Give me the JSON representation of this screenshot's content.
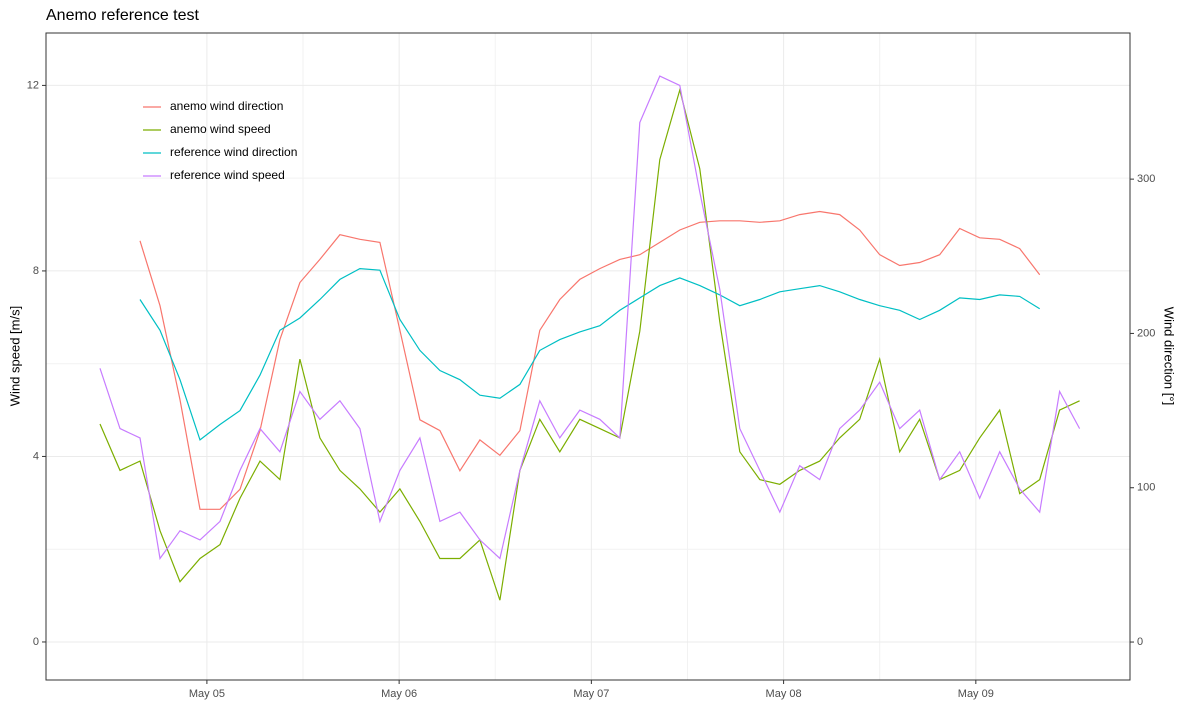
{
  "chart_data": {
    "type": "line",
    "title": "Anemo reference test",
    "y_label": "Wind speed [m/s]",
    "y2_label": "Wind direction [°]",
    "x": [
      4.444,
      4.548,
      4.652,
      4.756,
      4.86,
      4.964,
      5.068,
      5.172,
      5.276,
      5.38,
      5.484,
      5.588,
      5.692,
      5.796,
      5.9,
      6.004,
      6.108,
      6.212,
      6.316,
      6.42,
      6.524,
      6.628,
      6.732,
      6.836,
      6.94,
      7.044,
      7.148,
      7.252,
      7.356,
      7.46,
      7.564,
      7.668,
      7.772,
      7.876,
      7.98,
      8.084,
      8.188,
      8.292,
      8.396,
      8.5,
      8.604,
      8.708,
      8.812,
      8.916,
      9.02,
      9.124,
      9.228,
      9.332,
      9.436,
      9.54
    ],
    "series": [
      {
        "name": "anemo wind direction",
        "color": "#F8766D",
        "axis": "y2",
        "values": [
          null,
          null,
          260,
          218,
          157,
          86,
          86,
          99,
          137,
          196,
          233,
          248,
          264,
          261,
          259,
          202,
          144,
          137,
          111,
          131,
          121,
          137,
          202,
          222,
          235,
          242,
          248,
          251,
          259,
          267,
          272,
          273,
          273,
          272,
          273,
          277,
          279,
          277,
          267,
          251,
          244,
          246,
          251,
          268,
          262,
          261,
          255,
          238,
          null,
          null
        ]
      },
      {
        "name": "anemo wind speed",
        "color": "#7CAE00",
        "values": [
          4.7,
          3.7,
          3.9,
          2.4,
          1.3,
          1.8,
          2.1,
          3.1,
          3.9,
          3.5,
          6.1,
          4.4,
          3.7,
          3.3,
          2.8,
          3.3,
          2.6,
          1.8,
          1.8,
          2.2,
          0.9,
          3.7,
          4.8,
          4.1,
          4.8,
          4.6,
          4.4,
          6.7,
          10.4,
          11.9,
          10.2,
          6.9,
          4.1,
          3.5,
          3.4,
          3.7,
          3.9,
          4.4,
          4.8,
          6.1,
          4.1,
          4.8,
          3.5,
          3.7,
          4.4,
          5.0,
          3.2,
          3.5,
          5.0,
          5.2
        ]
      },
      {
        "name": "reference wind direction",
        "color": "#00BFC4",
        "axis": "y2",
        "values": [
          null,
          null,
          222,
          202,
          170,
          131,
          141,
          150,
          173,
          202,
          210,
          222,
          235,
          242,
          241,
          209,
          189,
          176,
          170,
          160,
          158,
          167,
          189,
          196,
          201,
          205,
          215,
          223,
          231,
          236,
          231,
          225,
          218,
          222,
          227,
          229,
          231,
          227,
          222,
          218,
          215,
          209,
          215,
          223,
          222,
          225,
          224,
          216,
          null,
          null
        ]
      },
      {
        "name": "reference wind speed",
        "color": "#C77CFF",
        "values": [
          5.9,
          4.6,
          4.4,
          1.8,
          2.4,
          2.2,
          2.6,
          3.7,
          4.6,
          4.1,
          5.4,
          4.8,
          5.2,
          4.6,
          2.6,
          3.7,
          4.4,
          2.6,
          2.8,
          2.2,
          1.8,
          3.7,
          5.2,
          4.4,
          5.0,
          4.8,
          4.4,
          11.2,
          12.2,
          12.0,
          9.7,
          7.6,
          4.6,
          3.7,
          2.8,
          3.8,
          3.5,
          4.6,
          5.0,
          5.6,
          4.6,
          5.0,
          3.5,
          4.1,
          3.1,
          4.1,
          3.3,
          2.8,
          5.4,
          4.6
        ]
      }
    ],
    "xlim": [
      4.163,
      9.802
    ],
    "xticks": [
      {
        "value": 5,
        "label": "May 05"
      },
      {
        "value": 6,
        "label": "May 06"
      },
      {
        "value": 7,
        "label": "May 07"
      },
      {
        "value": 8,
        "label": "May 08"
      },
      {
        "value": 9,
        "label": "May 09"
      }
    ],
    "ylim": [
      -0.82,
      13.13
    ],
    "yticks": [
      0,
      4,
      8,
      12
    ],
    "y2lim": [
      -24.6,
      394.7
    ],
    "y2ticks": [
      0,
      100,
      200,
      300
    ],
    "grid": true,
    "legend": "top-left"
  }
}
